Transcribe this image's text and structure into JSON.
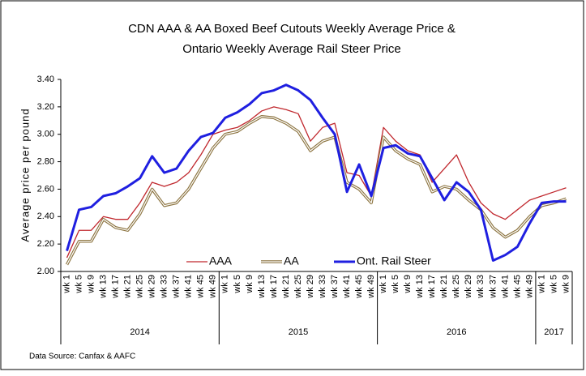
{
  "chart_data": {
    "type": "line",
    "title": [
      "CDN AAA & AA Boxed Beef Cutouts Weekly Average Price &",
      "Ontario Weekly Average Rail Steer Price"
    ],
    "y_label": "Average price per pound",
    "source": "Data Source: Canfax & AAFC",
    "categories": [
      "wk 1",
      "wk 5",
      "wk 9",
      "wk 13",
      "wk 17",
      "wk 21",
      "wk 25",
      "wk 29",
      "wk 33",
      "wk 37",
      "wk 41",
      "wk 45",
      "wk 49",
      "wk 1",
      "wk 5",
      "wk 9",
      "wk 13",
      "wk 17",
      "wk 21",
      "wk 25",
      "wk 29",
      "wk 33",
      "wk 37",
      "wk 41",
      "wk 45",
      "wk 49",
      "wk 1",
      "wk 5",
      "wk 9",
      "wk 13",
      "wk 17",
      "wk 21",
      "wk 25",
      "wk 29",
      "wk 33",
      "wk 37",
      "wk 41",
      "wk 45",
      "wk 49",
      "wk 1",
      "wk 5",
      "wk 9"
    ],
    "x_groups": [
      {
        "label": "2014",
        "span": 13
      },
      {
        "label": "2015",
        "span": 13
      },
      {
        "label": "2016",
        "span": 13
      },
      {
        "label": "2017",
        "span": 3
      }
    ],
    "series": [
      {
        "name": "AAA",
        "color": "#c0272d",
        "style": "single",
        "values": [
          2.1,
          2.3,
          2.3,
          2.4,
          2.38,
          2.38,
          2.5,
          2.65,
          2.62,
          2.65,
          2.72,
          2.85,
          3.0,
          3.03,
          3.05,
          3.1,
          3.17,
          3.2,
          3.18,
          3.15,
          2.95,
          3.05,
          3.08,
          2.72,
          2.7,
          2.55,
          3.05,
          2.95,
          2.88,
          2.85,
          2.65,
          2.75,
          2.85,
          2.65,
          2.5,
          2.42,
          2.38,
          2.45,
          2.52,
          2.55,
          2.58,
          2.61
        ]
      },
      {
        "name": "AA",
        "color": "#8c7440",
        "style": "double",
        "values": [
          2.05,
          2.22,
          2.22,
          2.38,
          2.32,
          2.3,
          2.42,
          2.6,
          2.48,
          2.5,
          2.6,
          2.75,
          2.9,
          3.0,
          3.02,
          3.08,
          3.13,
          3.12,
          3.08,
          3.02,
          2.88,
          2.95,
          2.98,
          2.65,
          2.6,
          2.5,
          2.98,
          2.88,
          2.82,
          2.78,
          2.58,
          2.62,
          2.6,
          2.52,
          2.45,
          2.32,
          2.25,
          2.3,
          2.4,
          2.48,
          2.5,
          2.53
        ]
      },
      {
        "name": "Ont. Rail Steer",
        "color": "#1f1fe0",
        "style": "thick",
        "values": [
          2.15,
          2.45,
          2.47,
          2.55,
          2.57,
          2.62,
          2.68,
          2.84,
          2.72,
          2.75,
          2.88,
          2.98,
          3.01,
          3.12,
          3.16,
          3.22,
          3.3,
          3.32,
          3.36,
          3.32,
          3.25,
          3.12,
          3.0,
          2.58,
          2.78,
          2.55,
          2.9,
          2.92,
          2.86,
          2.84,
          2.68,
          2.52,
          2.65,
          2.58,
          2.45,
          2.08,
          2.12,
          2.18,
          2.35,
          2.5,
          2.51,
          2.51
        ]
      }
    ],
    "ylim": [
      2.0,
      3.4
    ],
    "yticks": [
      {
        "value": 2.0,
        "label": "2.00"
      },
      {
        "value": 2.2,
        "label": "2.20"
      },
      {
        "value": 2.4,
        "label": "2.40"
      },
      {
        "value": 2.6,
        "label": "2.60"
      },
      {
        "value": 2.8,
        "label": "2.80"
      },
      {
        "value": 3.0,
        "label": "3.00"
      },
      {
        "value": 3.2,
        "label": "3.20"
      },
      {
        "value": 3.4,
        "label": "3.40"
      }
    ],
    "legend": "bottom"
  }
}
